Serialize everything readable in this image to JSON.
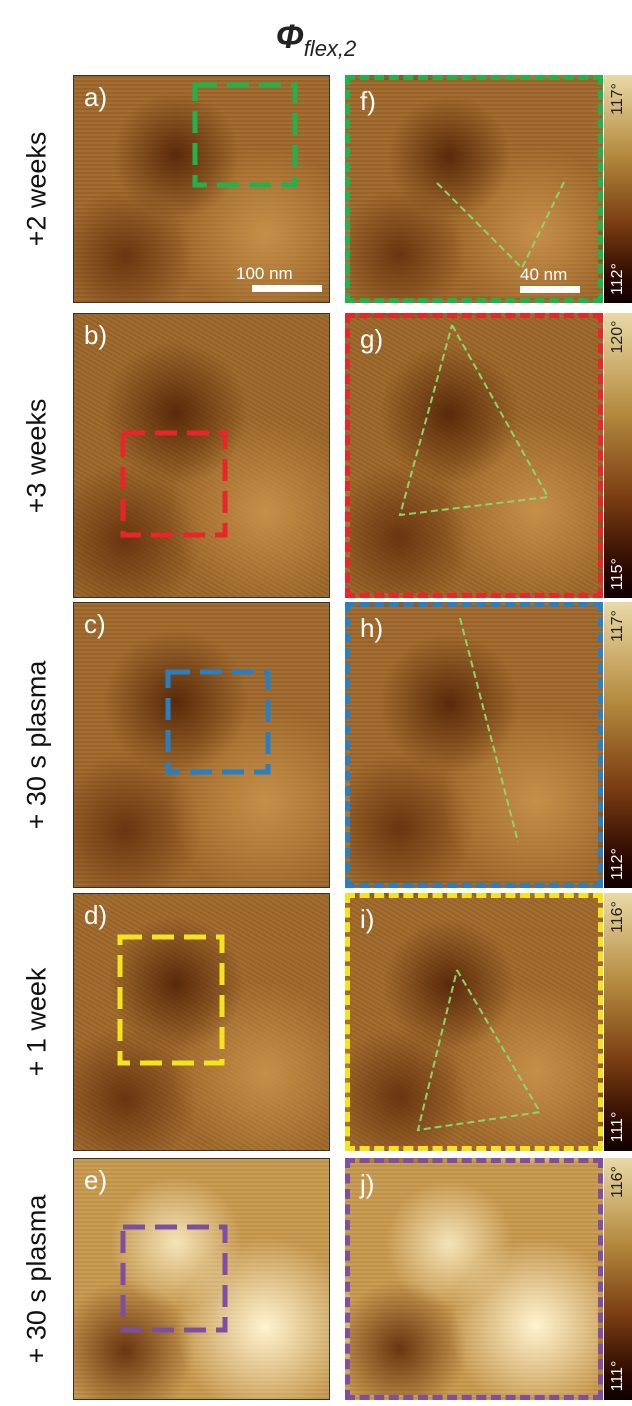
{
  "title": {
    "symbol": "Φ",
    "subscript": "flex,2"
  },
  "rows": [
    {
      "label": "+2 weeks",
      "left": {
        "panel": "a)",
        "scale_bar": "100 nm"
      },
      "right": {
        "panel": "f)",
        "scale_bar": "40 nm"
      },
      "colorbar": {
        "max": "117°",
        "min": "112°"
      }
    },
    {
      "label": "+3 weeks",
      "left": {
        "panel": "b)"
      },
      "right": {
        "panel": "g)"
      },
      "colorbar": {
        "max": "120°",
        "min": "115°"
      }
    },
    {
      "label": "+ 30 s plasma",
      "left": {
        "panel": "c)"
      },
      "right": {
        "panel": "h)"
      },
      "colorbar": {
        "max": "117°",
        "min": "112°"
      }
    },
    {
      "label": "+ 1 week",
      "left": {
        "panel": "d)"
      },
      "right": {
        "panel": "i)"
      },
      "colorbar": {
        "max": "116°",
        "min": "111°"
      }
    },
    {
      "label": "+ 30 s plasma",
      "left": {
        "panel": "e)"
      },
      "right": {
        "panel": "j)"
      },
      "colorbar": {
        "max": "116°",
        "min": "111°"
      }
    }
  ]
}
